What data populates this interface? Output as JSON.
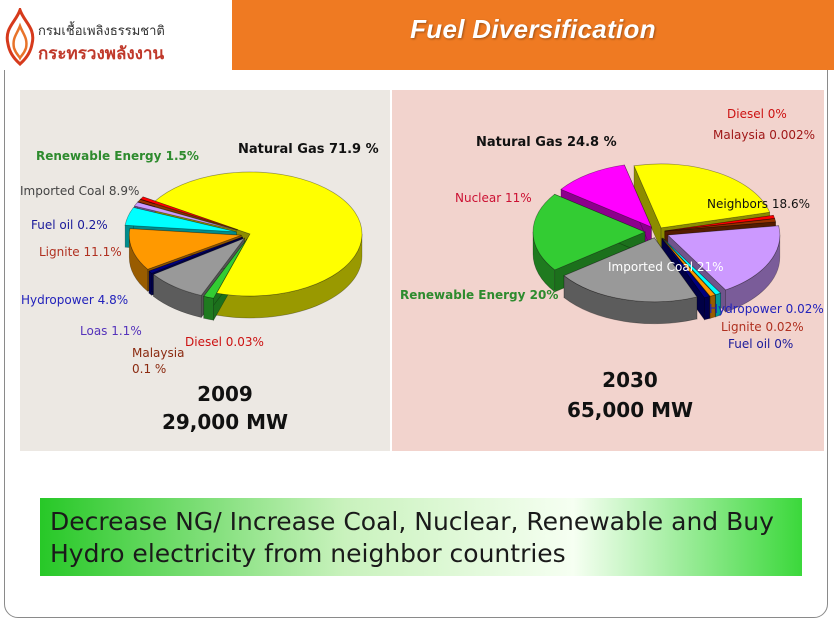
{
  "header": {
    "org_line1": "กรมเชื้อเพลิงธรรมชาติ",
    "org_line2": "กระทรวงพลังงาน",
    "title": "Fuel Diversification",
    "title_bar_color": "#ef7a22"
  },
  "chart_data": [
    {
      "type": "pie",
      "year_label": "2009",
      "capacity_label": "29,000 MW",
      "slices": [
        {
          "label": "Natural Gas 71.9 %",
          "value": 71.9,
          "color": "#ffff00"
        },
        {
          "label": "Renewable Energy 1.5%",
          "value": 1.5,
          "color": "#33cc33"
        },
        {
          "label": "Imported Coal 8.9%",
          "value": 8.9,
          "color": "#999999"
        },
        {
          "label": "Fuel oil 0.2%",
          "value": 0.2,
          "color": "#000080"
        },
        {
          "label": "Lignite 11.1%",
          "value": 11.1,
          "color": "#ff9900"
        },
        {
          "label": "Hydropower 4.8%",
          "value": 4.8,
          "color": "#00ffff"
        },
        {
          "label": "Loas 1.1%",
          "value": 1.1,
          "color": "#cc99ff"
        },
        {
          "label": "Malaysia 0.1 %",
          "value": 0.1,
          "color": "#993300"
        },
        {
          "label": "Diesel 0.03%",
          "value": 0.03,
          "color": "#ff0000"
        }
      ]
    },
    {
      "type": "pie",
      "year_label": "2030",
      "capacity_label": "65,000 MW",
      "slices": [
        {
          "label": "Natural Gas 24.8 %",
          "value": 24.8,
          "color": "#ffff00"
        },
        {
          "label": "Diesel 0%",
          "value": 0,
          "color": "#ff0000"
        },
        {
          "label": "Malaysia 0.002%",
          "value": 0.002,
          "color": "#993300"
        },
        {
          "label": "Neighbors 18.6%",
          "value": 18.6,
          "color": "#cc99ff"
        },
        {
          "label": "Hydropower 0.02%",
          "value": 0.02,
          "color": "#00ffff"
        },
        {
          "label": "Lignite 0.02%",
          "value": 0.02,
          "color": "#ff9900"
        },
        {
          "label": "Fuel oil 0%",
          "value": 0,
          "color": "#000080"
        },
        {
          "label": "Imported Coal 21%",
          "value": 21,
          "color": "#999999"
        },
        {
          "label": "Renewable Energy 20%",
          "value": 20,
          "color": "#33cc33"
        },
        {
          "label": "Nuclear 11%",
          "value": 11,
          "color": "#ff00ff"
        }
      ]
    }
  ],
  "banner": {
    "line1": "Decrease NG/ Increase Coal, Nuclear, Renewable and Buy",
    "line2": "Hydro electricity from neighbor countries"
  }
}
